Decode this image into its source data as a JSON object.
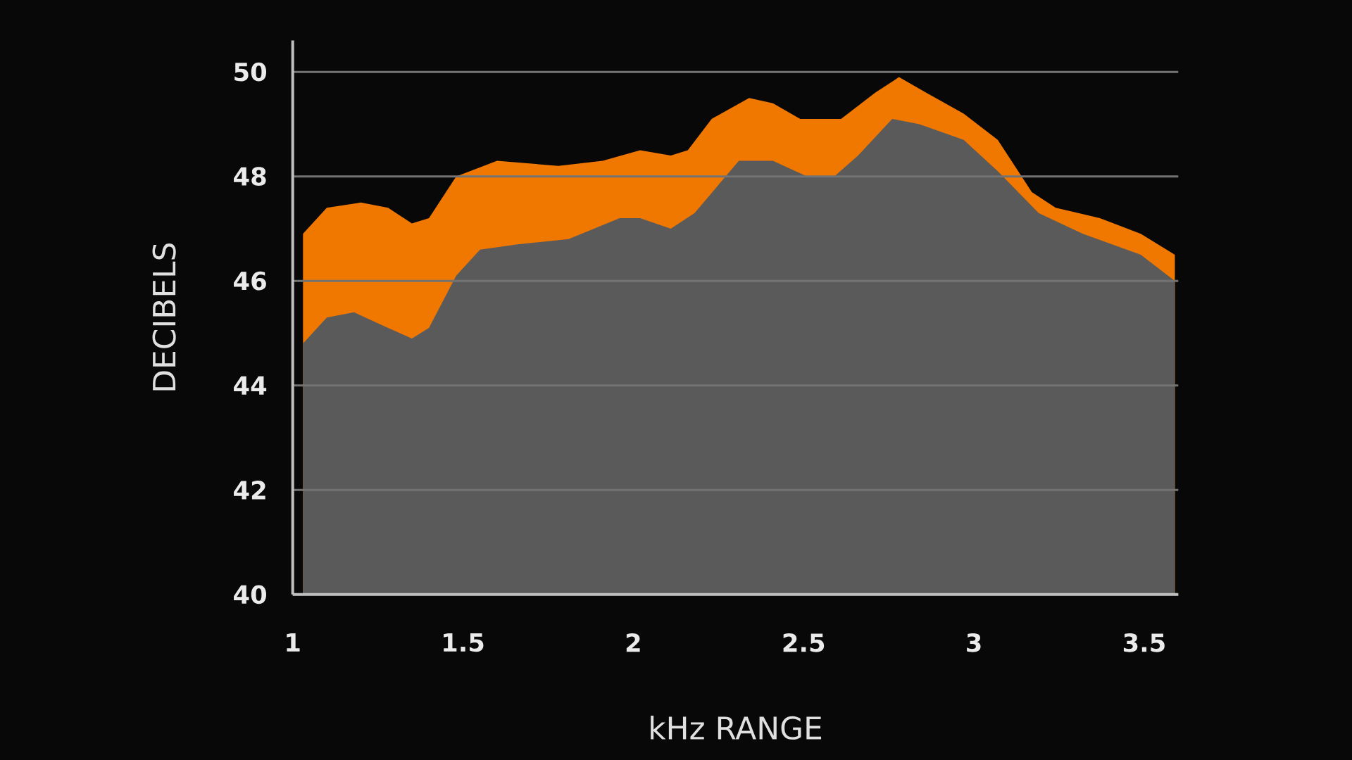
{
  "chart_data": {
    "type": "area",
    "xlabel": "kHz RANGE",
    "ylabel": "DECIBELS",
    "xlim": [
      1,
      3.6
    ],
    "ylim": [
      40,
      50.6
    ],
    "xticks": [
      1,
      1.5,
      2,
      2.5,
      3,
      3.5
    ],
    "yticks": [
      40,
      42,
      44,
      46,
      48,
      50
    ],
    "grid": "y",
    "series": [
      {
        "color": "#f07800",
        "x": [
          1.03,
          1.1,
          1.2,
          1.28,
          1.35,
          1.4,
          1.48,
          1.6,
          1.78,
          1.91,
          2.02,
          2.11,
          2.16,
          2.23,
          2.34,
          2.41,
          2.49,
          2.61,
          2.71,
          2.78,
          2.86,
          2.97,
          3.07,
          3.17,
          3.24,
          3.37,
          3.49,
          3.59
        ],
        "values": [
          46.9,
          47.4,
          47.5,
          47.4,
          47.1,
          47.2,
          48.0,
          48.3,
          48.2,
          48.3,
          48.5,
          48.4,
          48.5,
          49.1,
          49.5,
          49.4,
          49.1,
          49.1,
          49.6,
          49.9,
          49.6,
          49.2,
          48.7,
          47.7,
          47.4,
          47.2,
          46.9,
          46.5
        ]
      },
      {
        "color": "#5a5a5a",
        "x": [
          1.03,
          1.1,
          1.18,
          1.28,
          1.35,
          1.4,
          1.48,
          1.55,
          1.66,
          1.81,
          1.96,
          2.02,
          2.11,
          2.18,
          2.31,
          2.41,
          2.51,
          2.59,
          2.66,
          2.76,
          2.84,
          2.97,
          3.07,
          3.19,
          3.32,
          3.49,
          3.59
        ],
        "values": [
          44.8,
          45.3,
          45.4,
          45.1,
          44.9,
          45.1,
          46.1,
          46.6,
          46.7,
          46.8,
          47.2,
          47.2,
          47.0,
          47.3,
          48.3,
          48.3,
          48.0,
          48.0,
          48.4,
          49.1,
          49.0,
          48.7,
          48.1,
          47.3,
          46.9,
          46.5,
          46.0
        ]
      }
    ]
  }
}
